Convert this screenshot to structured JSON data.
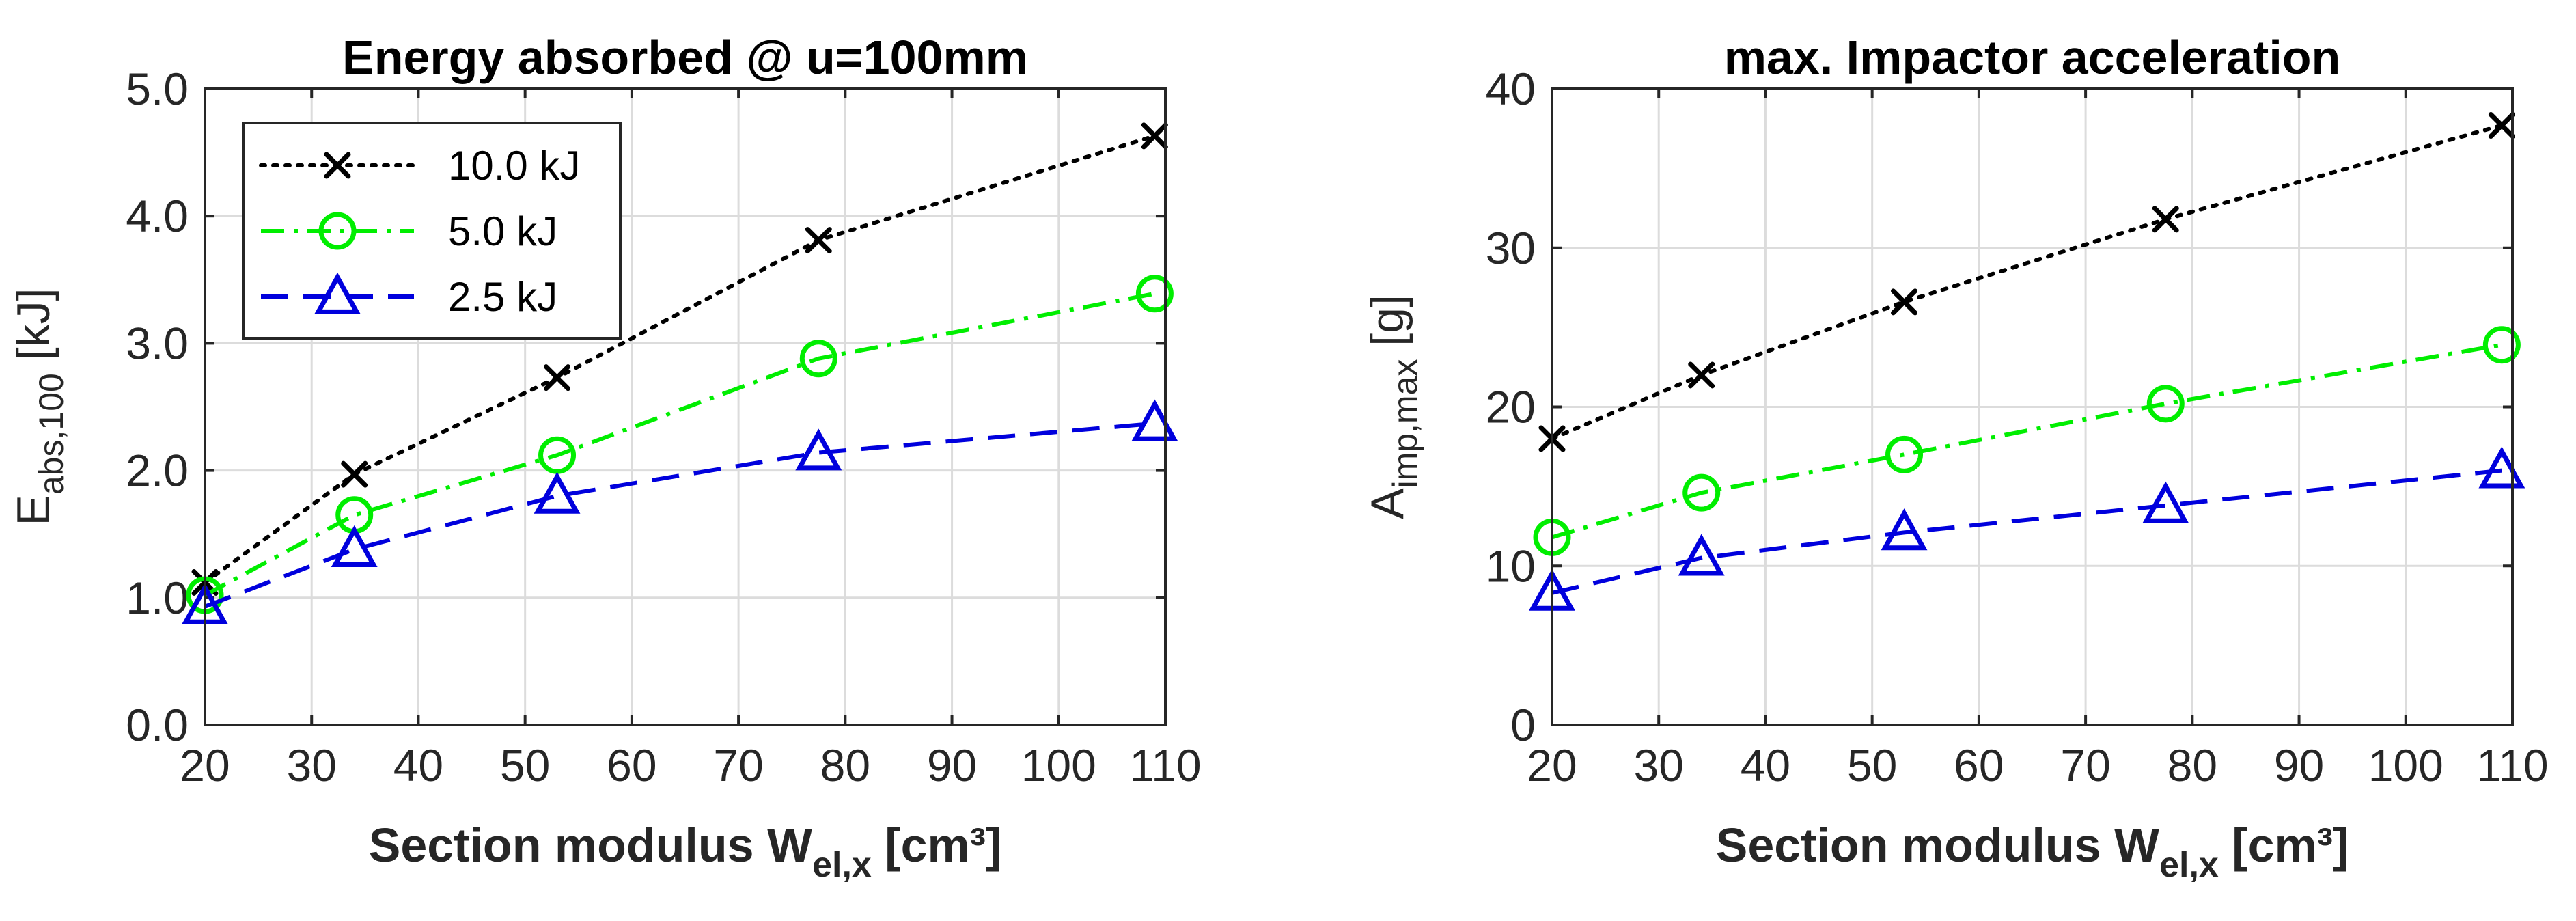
{
  "chart_data": [
    {
      "type": "line",
      "title": "Energy absorbed @ u=100mm",
      "xlabel": {
        "main": "Section modulus W",
        "sub": "el,x",
        "unit": " [cm³]"
      },
      "ylabel": {
        "main": "E",
        "sub": "abs,100",
        "unit": " [kJ]"
      },
      "xlim": [
        20,
        110
      ],
      "ylim": [
        0,
        5
      ],
      "xticks": [
        "20",
        "30",
        "40",
        "50",
        "60",
        "70",
        "80",
        "90",
        "100",
        "110"
      ],
      "yticks": [
        "0.0",
        "1.0",
        "2.0",
        "3.0",
        "4.0",
        "5.0"
      ],
      "grid": true,
      "legend_position": "top-left",
      "x": [
        20,
        34,
        53,
        77.5,
        109
      ],
      "series": [
        {
          "name": "10.0 kJ",
          "color": "#000000",
          "marker": "x",
          "dash": "dotted",
          "values": [
            1.12,
            1.97,
            2.73,
            3.81,
            4.63
          ]
        },
        {
          "name": "5.0 kJ",
          "color": "#00ee00",
          "marker": "circle",
          "dash": "dashdot",
          "values": [
            1.02,
            1.65,
            2.12,
            2.88,
            3.39
          ]
        },
        {
          "name": "2.5 kJ",
          "color": "#0000dd",
          "marker": "triangle",
          "dash": "dashed",
          "values": [
            0.93,
            1.38,
            1.8,
            2.14,
            2.37
          ]
        }
      ]
    },
    {
      "type": "line",
      "title": "max. Impactor acceleration",
      "xlabel": {
        "main": "Section modulus W",
        "sub": "el,x",
        "unit": " [cm³]"
      },
      "ylabel": {
        "main": "A",
        "sub": "imp,max",
        "unit": " [g]"
      },
      "xlim": [
        20,
        110
      ],
      "ylim": [
        0,
        40
      ],
      "xticks": [
        "20",
        "30",
        "40",
        "50",
        "60",
        "70",
        "80",
        "90",
        "100",
        "110"
      ],
      "yticks": [
        "0",
        "10",
        "20",
        "30",
        "40"
      ],
      "grid": true,
      "legend_position": "none",
      "x": [
        20,
        34,
        53,
        77.5,
        109
      ],
      "series": [
        {
          "name": "10.0 kJ",
          "color": "#000000",
          "marker": "x",
          "dash": "dotted",
          "values": [
            18.0,
            22.0,
            26.6,
            31.8,
            37.7
          ]
        },
        {
          "name": "5.0 kJ",
          "color": "#00ee00",
          "marker": "circle",
          "dash": "dashdot",
          "values": [
            11.8,
            14.6,
            17.0,
            20.2,
            23.9
          ]
        },
        {
          "name": "2.5 kJ",
          "color": "#0000dd",
          "marker": "triangle",
          "dash": "dashed",
          "values": [
            8.3,
            10.5,
            12.1,
            13.8,
            16.0
          ]
        }
      ]
    }
  ]
}
